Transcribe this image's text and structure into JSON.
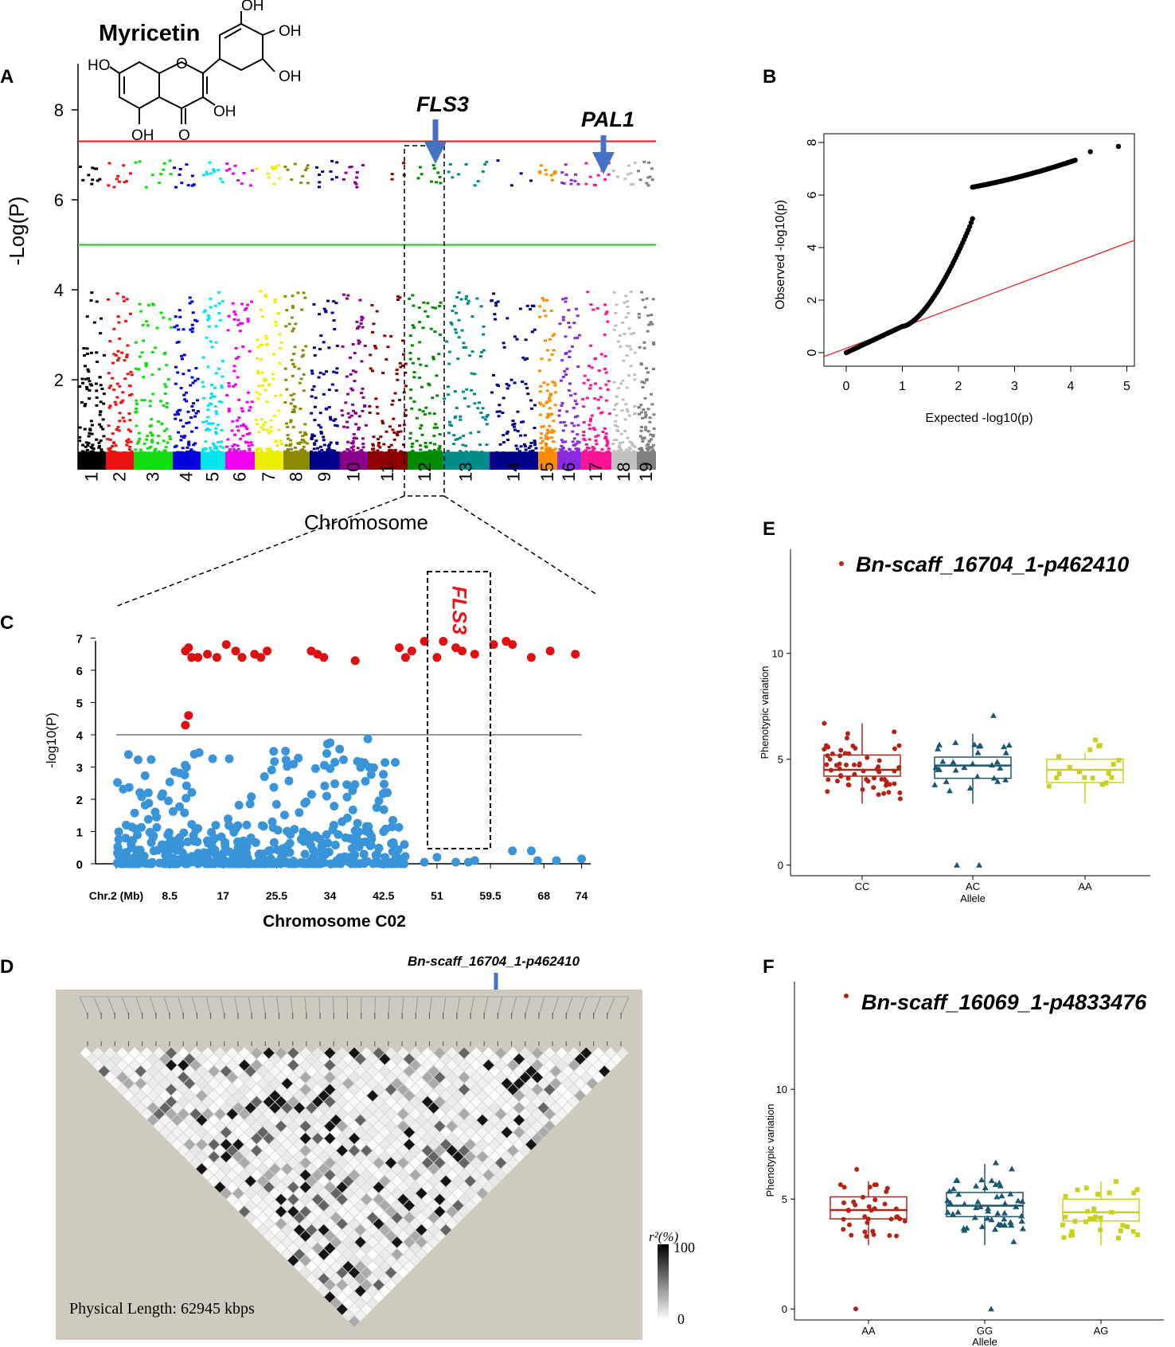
{
  "figure": {
    "panel_labels": [
      "A",
      "B",
      "C",
      "D",
      "E",
      "F"
    ]
  },
  "colors": {
    "chr": [
      "#000000",
      "#ee1111",
      "#11dd11",
      "#0000dd",
      "#00e5ee",
      "#ee00ee",
      "#eeee00",
      "#8b8b00",
      "#00008b",
      "#8b008b",
      "#8b0000",
      "#008b00",
      "#008b8b",
      "#00008b",
      "#ff8c00",
      "#8a2be2",
      "#ff1493",
      "#c0c0c0",
      "#808080"
    ],
    "threshold_red": "#e8141b",
    "threshold_green": "#22c322",
    "arrow_blue": "#4472c4",
    "ld_bg": "#cfcac0",
    "box_red": "#b22418",
    "box_teal": "#1b5870",
    "box_yellow": "#c8d21e",
    "c_red": "#dd1111",
    "c_blue": "#3a94d8",
    "fls3_red": "#e8141b"
  },
  "chart_data": [
    {
      "panel": "A",
      "type": "scatter",
      "subtype": "manhattan",
      "title": "Myricetin",
      "xlabel": "Chromosome",
      "ylabel": "-Log(P)",
      "ylim": [
        0,
        9
      ],
      "yticks": [
        2,
        4,
        6,
        8
      ],
      "categories": [
        "1",
        "2",
        "3",
        "4",
        "5",
        "6",
        "7",
        "8",
        "9",
        "10",
        "11",
        "12",
        "13",
        "14",
        "15",
        "16",
        "17",
        "18",
        "19"
      ],
      "thresholds": [
        {
          "value": 7.3,
          "color": "red"
        },
        {
          "value": 5.0,
          "color": "green"
        }
      ],
      "annotations": [
        {
          "text": "FLS3",
          "chromosome": "12",
          "arrow": true
        },
        {
          "text": "PAL1",
          "chromosome": "17",
          "arrow": true
        }
      ],
      "chemical_labels": [
        "OH",
        "OH",
        "OH",
        "HO",
        "OH",
        "OH",
        "O",
        "O"
      ]
    },
    {
      "panel": "B",
      "type": "scatter",
      "subtype": "qq",
      "xlabel": "Expected  -log10(p)",
      "ylabel": "Observed  -log10(p)",
      "xlim": [
        0,
        5
      ],
      "ylim": [
        0,
        8
      ],
      "xticks": [
        0,
        1,
        2,
        3,
        4,
        5
      ],
      "yticks": [
        0,
        2,
        4,
        6,
        8
      ]
    },
    {
      "panel": "C",
      "type": "scatter",
      "subtype": "regional-manhattan",
      "xlabel": "Chromosome C02",
      "ylabel": "-log10(P)",
      "xtick_labels": [
        "Chr.2 (Mb)",
        "8.5",
        "17",
        "25.5",
        "34",
        "42.5",
        "51",
        "59.5",
        "68",
        "74"
      ],
      "xtick_values": [
        0,
        8.5,
        17,
        25.5,
        34,
        42.5,
        51,
        59.5,
        68,
        74
      ],
      "ylim": [
        0,
        7
      ],
      "yticks": [
        0,
        1,
        2,
        3,
        4,
        5,
        6,
        7
      ],
      "threshold": 4.0,
      "highlight": {
        "label": "FLS3",
        "x_range": [
          49.5,
          59.5
        ]
      },
      "significant_x": [
        11,
        11.5,
        12,
        13,
        14.5,
        16,
        17.5,
        19,
        20,
        22,
        23,
        24,
        31,
        32,
        33,
        38,
        45,
        46,
        47,
        49,
        51,
        52,
        54,
        55,
        57,
        60,
        62,
        63,
        66,
        69,
        73
      ],
      "significant_y": [
        6.6,
        6.7,
        6.4,
        6.4,
        6.5,
        6.4,
        6.8,
        6.6,
        6.4,
        6.5,
        6.4,
        6.6,
        6.6,
        6.5,
        6.4,
        6.3,
        6.7,
        6.4,
        6.6,
        6.9,
        6.4,
        6.9,
        6.7,
        6.6,
        6.5,
        6.8,
        6.9,
        6.8,
        6.4,
        6.6,
        6.5
      ]
    },
    {
      "panel": "D",
      "type": "heatmap",
      "subtype": "linkage-disequilibrium",
      "title": "Bn-scaff_16704_1-p462410",
      "legend_label": "r²(%)",
      "legend_max": "100",
      "legend_min": "0",
      "caption": "Physical Length: 62945 kbps"
    },
    {
      "panel": "E",
      "type": "box",
      "title": "Bn-scaff_16704_1-p462410",
      "xlabel": "Allele",
      "ylabel": "Phenotypic variation",
      "categories": [
        "CC",
        "AC",
        "AA"
      ],
      "ylim": [
        -0.5,
        14.5
      ],
      "yticks": [
        0,
        5,
        10
      ],
      "series": [
        {
          "name": "CC",
          "min": 2.9,
          "q1": 4.2,
          "median": 4.5,
          "q3": 5.2,
          "max": 6.7,
          "n": 60,
          "marker": "circle"
        },
        {
          "name": "AC",
          "min": 2.9,
          "q1": 4.1,
          "median": 4.7,
          "q3": 5.1,
          "max": 6.2,
          "n": 30,
          "marker": "triangle"
        },
        {
          "name": "AA",
          "min": 2.9,
          "q1": 3.9,
          "median": 4.5,
          "q3": 5.0,
          "max": 5.3,
          "n": 18,
          "marker": "square"
        }
      ]
    },
    {
      "panel": "F",
      "type": "box",
      "title": "Bn-scaff_16069_1-p4833476",
      "xlabel": "Allele",
      "ylabel": "Phenotypic variation",
      "categories": [
        "AA",
        "GG",
        "AG"
      ],
      "ylim": [
        -0.5,
        14.5
      ],
      "yticks": [
        0,
        5,
        10
      ],
      "series": [
        {
          "name": "AA",
          "min": 2.9,
          "q1": 4.1,
          "median": 4.5,
          "q3": 5.1,
          "max": 5.8,
          "n": 38,
          "marker": "circle"
        },
        {
          "name": "GG",
          "min": 2.9,
          "q1": 4.2,
          "median": 4.7,
          "q3": 5.3,
          "max": 6.6,
          "n": 55,
          "marker": "triangle"
        },
        {
          "name": "AG",
          "min": 2.9,
          "q1": 4.0,
          "median": 4.4,
          "q3": 5.0,
          "max": 5.8,
          "n": 30,
          "marker": "square"
        }
      ]
    }
  ]
}
